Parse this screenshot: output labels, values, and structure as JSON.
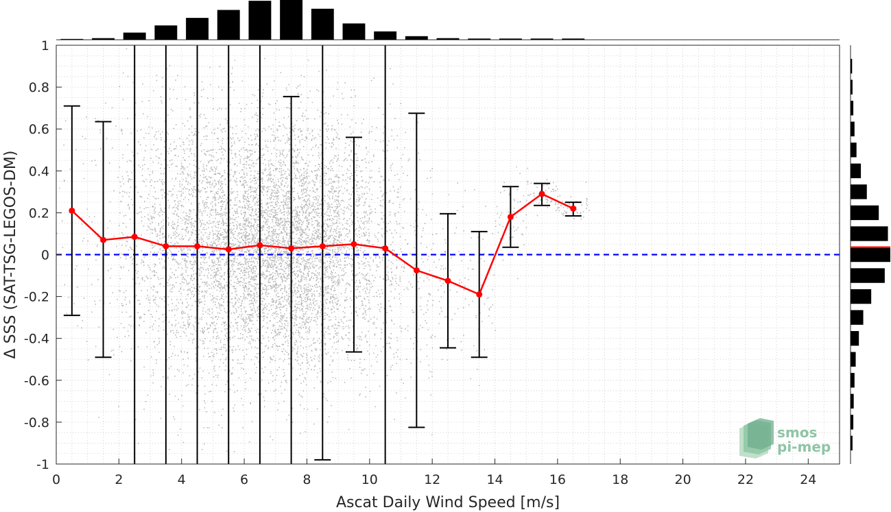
{
  "chart_data": {
    "type": "scatter",
    "title": "",
    "xlabel": "Ascat Daily Wind Speed [m/s]",
    "ylabel": "Δ SSS (SAT-TSG-LEGOS-DM)",
    "xlim": [
      0,
      25
    ],
    "ylim": [
      -1,
      1
    ],
    "xticks": [
      "0",
      "2",
      "4",
      "6",
      "8",
      "10",
      "12",
      "14",
      "16",
      "18",
      "20",
      "22",
      "24"
    ],
    "yticks": [
      "-1",
      "-0.8",
      "-0.6",
      "-0.4",
      "-0.2",
      "0",
      "0.2",
      "0.4",
      "0.6",
      "0.8",
      "1"
    ],
    "grid": "minor dotted",
    "colors": {
      "scatter": "#808080",
      "mean_line": "#ff0000",
      "zero_line": "#0000ff",
      "errorbar": "#000000",
      "histogram": "#000000"
    },
    "binned_mean": {
      "x": [
        0.5,
        1.5,
        2.5,
        3.5,
        4.5,
        5.5,
        6.5,
        7.5,
        8.5,
        9.5,
        10.5,
        11.5,
        12.5,
        13.5,
        14.5,
        15.5,
        16.5
      ],
      "mean": [
        0.21,
        0.07,
        0.085,
        0.04,
        0.04,
        0.025,
        0.045,
        0.03,
        0.04,
        0.05,
        0.03,
        -0.075,
        -0.125,
        -0.19,
        0.18,
        0.29,
        0.22
      ],
      "lower": [
        -0.29,
        -0.49,
        -1,
        -1,
        -1,
        -1,
        -1,
        -1,
        -0.98,
        -0.465,
        -1,
        -0.825,
        -0.445,
        -0.49,
        0.035,
        0.235,
        0.185
      ],
      "upper": [
        0.71,
        0.635,
        1,
        1,
        1,
        1,
        1,
        0.755,
        1,
        0.56,
        1,
        0.675,
        0.195,
        0.11,
        0.325,
        0.34,
        0.25
      ]
    },
    "zero_line": 0,
    "top_histogram": {
      "bin_centers": [
        0.5,
        1.5,
        2.5,
        3.5,
        4.5,
        5.5,
        6.5,
        7.5,
        8.5,
        9.5,
        10.5,
        11.5,
        12.5,
        13.5,
        14.5,
        15.5,
        16.5
      ],
      "relative_counts": [
        0.02,
        0.04,
        0.18,
        0.36,
        0.55,
        0.75,
        0.98,
        1.0,
        0.78,
        0.41,
        0.21,
        0.09,
        0.04,
        0.03,
        0.03,
        0.03,
        0.03
      ]
    },
    "right_histogram": {
      "bin_centers": [
        -0.9,
        -0.8,
        -0.7,
        -0.6,
        -0.5,
        -0.4,
        -0.3,
        -0.2,
        -0.1,
        0.0,
        0.1,
        0.2,
        0.3,
        0.4,
        0.5,
        0.6,
        0.7,
        0.8,
        0.9
      ],
      "relative_counts": [
        0.05,
        0.07,
        0.08,
        0.1,
        0.13,
        0.21,
        0.32,
        0.52,
        0.86,
        1.0,
        0.94,
        0.71,
        0.41,
        0.26,
        0.15,
        0.1,
        0.07,
        0.05,
        0.04
      ],
      "mean_marker": 0.035
    }
  },
  "logo": {
    "line1": "smos",
    "line2": "pi-mep"
  }
}
